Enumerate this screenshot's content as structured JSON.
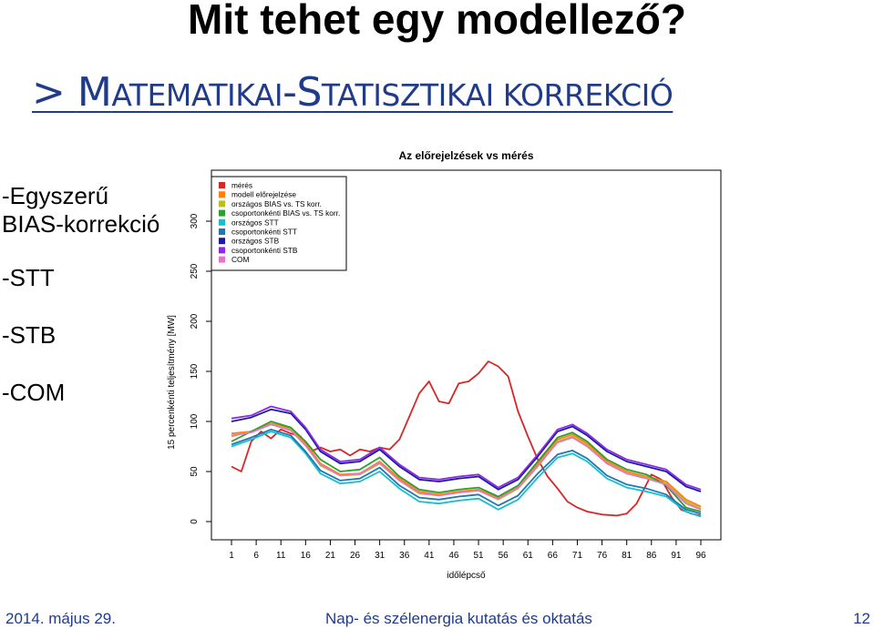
{
  "slide": {
    "title": "Mit tehet egy modellező?",
    "subtitle_arrow": "> ",
    "subtitle_parts": [
      {
        "text": "M",
        "big": true
      },
      {
        "text": "ATEMATIKAI",
        "big": false
      },
      {
        "text": "-",
        "big": true
      },
      {
        "text": "S",
        "big": true
      },
      {
        "text": "TATISZTIKAI KORREKCIÓ",
        "big": false
      }
    ],
    "bullets": [
      "-Egyszerű BIAS-korrekció",
      "-STT",
      "-STB",
      "-COM"
    ],
    "footer": {
      "date": "2014. május 29.",
      "center": "Nap- és szélenergia kutatás és oktatás",
      "page": "12"
    }
  },
  "chart_data": {
    "type": "line",
    "title": "Az előrejelzések vs mérés",
    "xlabel": "időlépcső",
    "ylabel": "15 percenkénti teljesítmény [MW]",
    "xlim": [
      1,
      96
    ],
    "ylim": [
      0,
      300
    ],
    "x_ticks": [
      1,
      6,
      11,
      16,
      21,
      26,
      31,
      36,
      41,
      46,
      51,
      56,
      61,
      66,
      71,
      76,
      81,
      86,
      91,
      96
    ],
    "y_ticks": [
      0,
      50,
      100,
      150,
      200,
      250,
      300
    ],
    "grid": false,
    "legend_position": "top-left",
    "series": [
      {
        "name": "mérés",
        "color": "#d62728",
        "x": [
          1,
          3,
          5,
          7,
          9,
          11,
          13,
          15,
          17,
          19,
          21,
          23,
          25,
          27,
          29,
          31,
          33,
          35,
          37,
          39,
          41,
          43,
          45,
          47,
          49,
          51,
          53,
          55,
          57,
          59,
          61,
          63,
          65,
          67,
          69,
          71,
          73,
          76,
          79,
          81,
          83,
          86,
          88,
          90,
          92,
          94,
          96
        ],
        "values": [
          55,
          50,
          80,
          90,
          83,
          92,
          88,
          85,
          70,
          74,
          70,
          72,
          66,
          72,
          70,
          74,
          72,
          82,
          105,
          128,
          140,
          120,
          118,
          138,
          140,
          148,
          160,
          155,
          145,
          110,
          85,
          62,
          45,
          33,
          20,
          14,
          10,
          7,
          6,
          8,
          18,
          47,
          42,
          25,
          12,
          8,
          6
        ]
      },
      {
        "name": "modell előrejelzése",
        "color": "#ff7f0e",
        "x": [
          1,
          5,
          9,
          13,
          16,
          19,
          23,
          27,
          31,
          35,
          39,
          43,
          47,
          51,
          55,
          59,
          63,
          67,
          70,
          73,
          77,
          81,
          85,
          89,
          93,
          96
        ],
        "values": [
          88,
          90,
          98,
          93,
          78,
          58,
          47,
          48,
          60,
          43,
          30,
          27,
          30,
          32,
          24,
          35,
          58,
          82,
          87,
          78,
          60,
          50,
          45,
          40,
          22,
          15
        ]
      },
      {
        "name": "országos BIAS vs. TS korr.",
        "color": "#bcbd22",
        "x": [
          1,
          5,
          9,
          13,
          16,
          19,
          23,
          27,
          31,
          35,
          39,
          43,
          47,
          51,
          55,
          59,
          63,
          67,
          70,
          73,
          77,
          81,
          85,
          89,
          93,
          96
        ],
        "values": [
          85,
          90,
          97,
          92,
          76,
          56,
          46,
          47,
          58,
          41,
          28,
          26,
          29,
          31,
          22,
          33,
          55,
          80,
          85,
          76,
          58,
          48,
          44,
          38,
          20,
          13
        ]
      },
      {
        "name": "csoportonkénti BIAS vs. TS korr.",
        "color": "#2ca02c",
        "x": [
          1,
          5,
          9,
          13,
          16,
          19,
          23,
          27,
          31,
          35,
          39,
          43,
          47,
          51,
          55,
          59,
          63,
          67,
          70,
          73,
          77,
          81,
          85,
          89,
          93,
          96
        ],
        "values": [
          80,
          90,
          100,
          94,
          80,
          62,
          50,
          52,
          64,
          45,
          32,
          29,
          32,
          34,
          25,
          36,
          60,
          84,
          89,
          80,
          62,
          52,
          47,
          36,
          14,
          10
        ]
      },
      {
        "name": "országos STT",
        "color": "#17becf",
        "x": [
          1,
          5,
          9,
          13,
          16,
          19,
          23,
          27,
          31,
          35,
          39,
          43,
          47,
          51,
          55,
          59,
          63,
          67,
          70,
          73,
          77,
          81,
          85,
          89,
          93,
          96
        ],
        "values": [
          75,
          82,
          90,
          84,
          68,
          48,
          38,
          40,
          50,
          33,
          20,
          18,
          21,
          23,
          12,
          22,
          44,
          64,
          68,
          60,
          43,
          34,
          30,
          25,
          10,
          5
        ]
      },
      {
        "name": "csoportonkénti STT",
        "color": "#1f77b4",
        "x": [
          1,
          5,
          9,
          13,
          16,
          19,
          23,
          27,
          31,
          35,
          39,
          43,
          47,
          51,
          55,
          59,
          63,
          67,
          70,
          73,
          77,
          81,
          85,
          89,
          93,
          96
        ],
        "values": [
          77,
          84,
          92,
          86,
          70,
          51,
          41,
          43,
          54,
          36,
          24,
          22,
          25,
          27,
          16,
          26,
          48,
          67,
          71,
          63,
          46,
          37,
          33,
          27,
          12,
          8
        ]
      },
      {
        "name": "országos STB",
        "color": "#1a1aa6",
        "x": [
          1,
          5,
          9,
          13,
          16,
          19,
          23,
          27,
          31,
          35,
          39,
          43,
          47,
          51,
          55,
          59,
          63,
          67,
          70,
          73,
          77,
          81,
          85,
          89,
          93,
          96
        ],
        "values": [
          100,
          104,
          112,
          108,
          92,
          70,
          58,
          60,
          72,
          55,
          42,
          40,
          43,
          45,
          32,
          42,
          65,
          90,
          95,
          86,
          70,
          60,
          55,
          50,
          35,
          30
        ]
      },
      {
        "name": "csoportonkénti STB",
        "color": "#8c2be2",
        "x": [
          1,
          5,
          9,
          13,
          16,
          19,
          23,
          27,
          31,
          35,
          39,
          43,
          47,
          51,
          55,
          59,
          63,
          67,
          70,
          73,
          77,
          81,
          85,
          89,
          93,
          96
        ],
        "values": [
          103,
          106,
          115,
          110,
          94,
          72,
          60,
          62,
          74,
          57,
          44,
          42,
          45,
          47,
          34,
          44,
          67,
          92,
          97,
          88,
          72,
          62,
          57,
          52,
          37,
          32
        ]
      },
      {
        "name": "COM",
        "color": "#e377c2",
        "x": [
          1,
          5,
          9,
          13,
          16,
          19,
          23,
          27,
          31,
          35,
          39,
          43,
          47,
          51,
          55,
          59,
          63,
          67,
          70,
          73,
          77,
          81,
          85,
          89,
          93,
          96
        ],
        "values": [
          86,
          89,
          97,
          91,
          76,
          57,
          46,
          48,
          59,
          41,
          29,
          26,
          29,
          31,
          23,
          34,
          56,
          79,
          84,
          75,
          58,
          48,
          43,
          37,
          18,
          12
        ]
      }
    ]
  }
}
